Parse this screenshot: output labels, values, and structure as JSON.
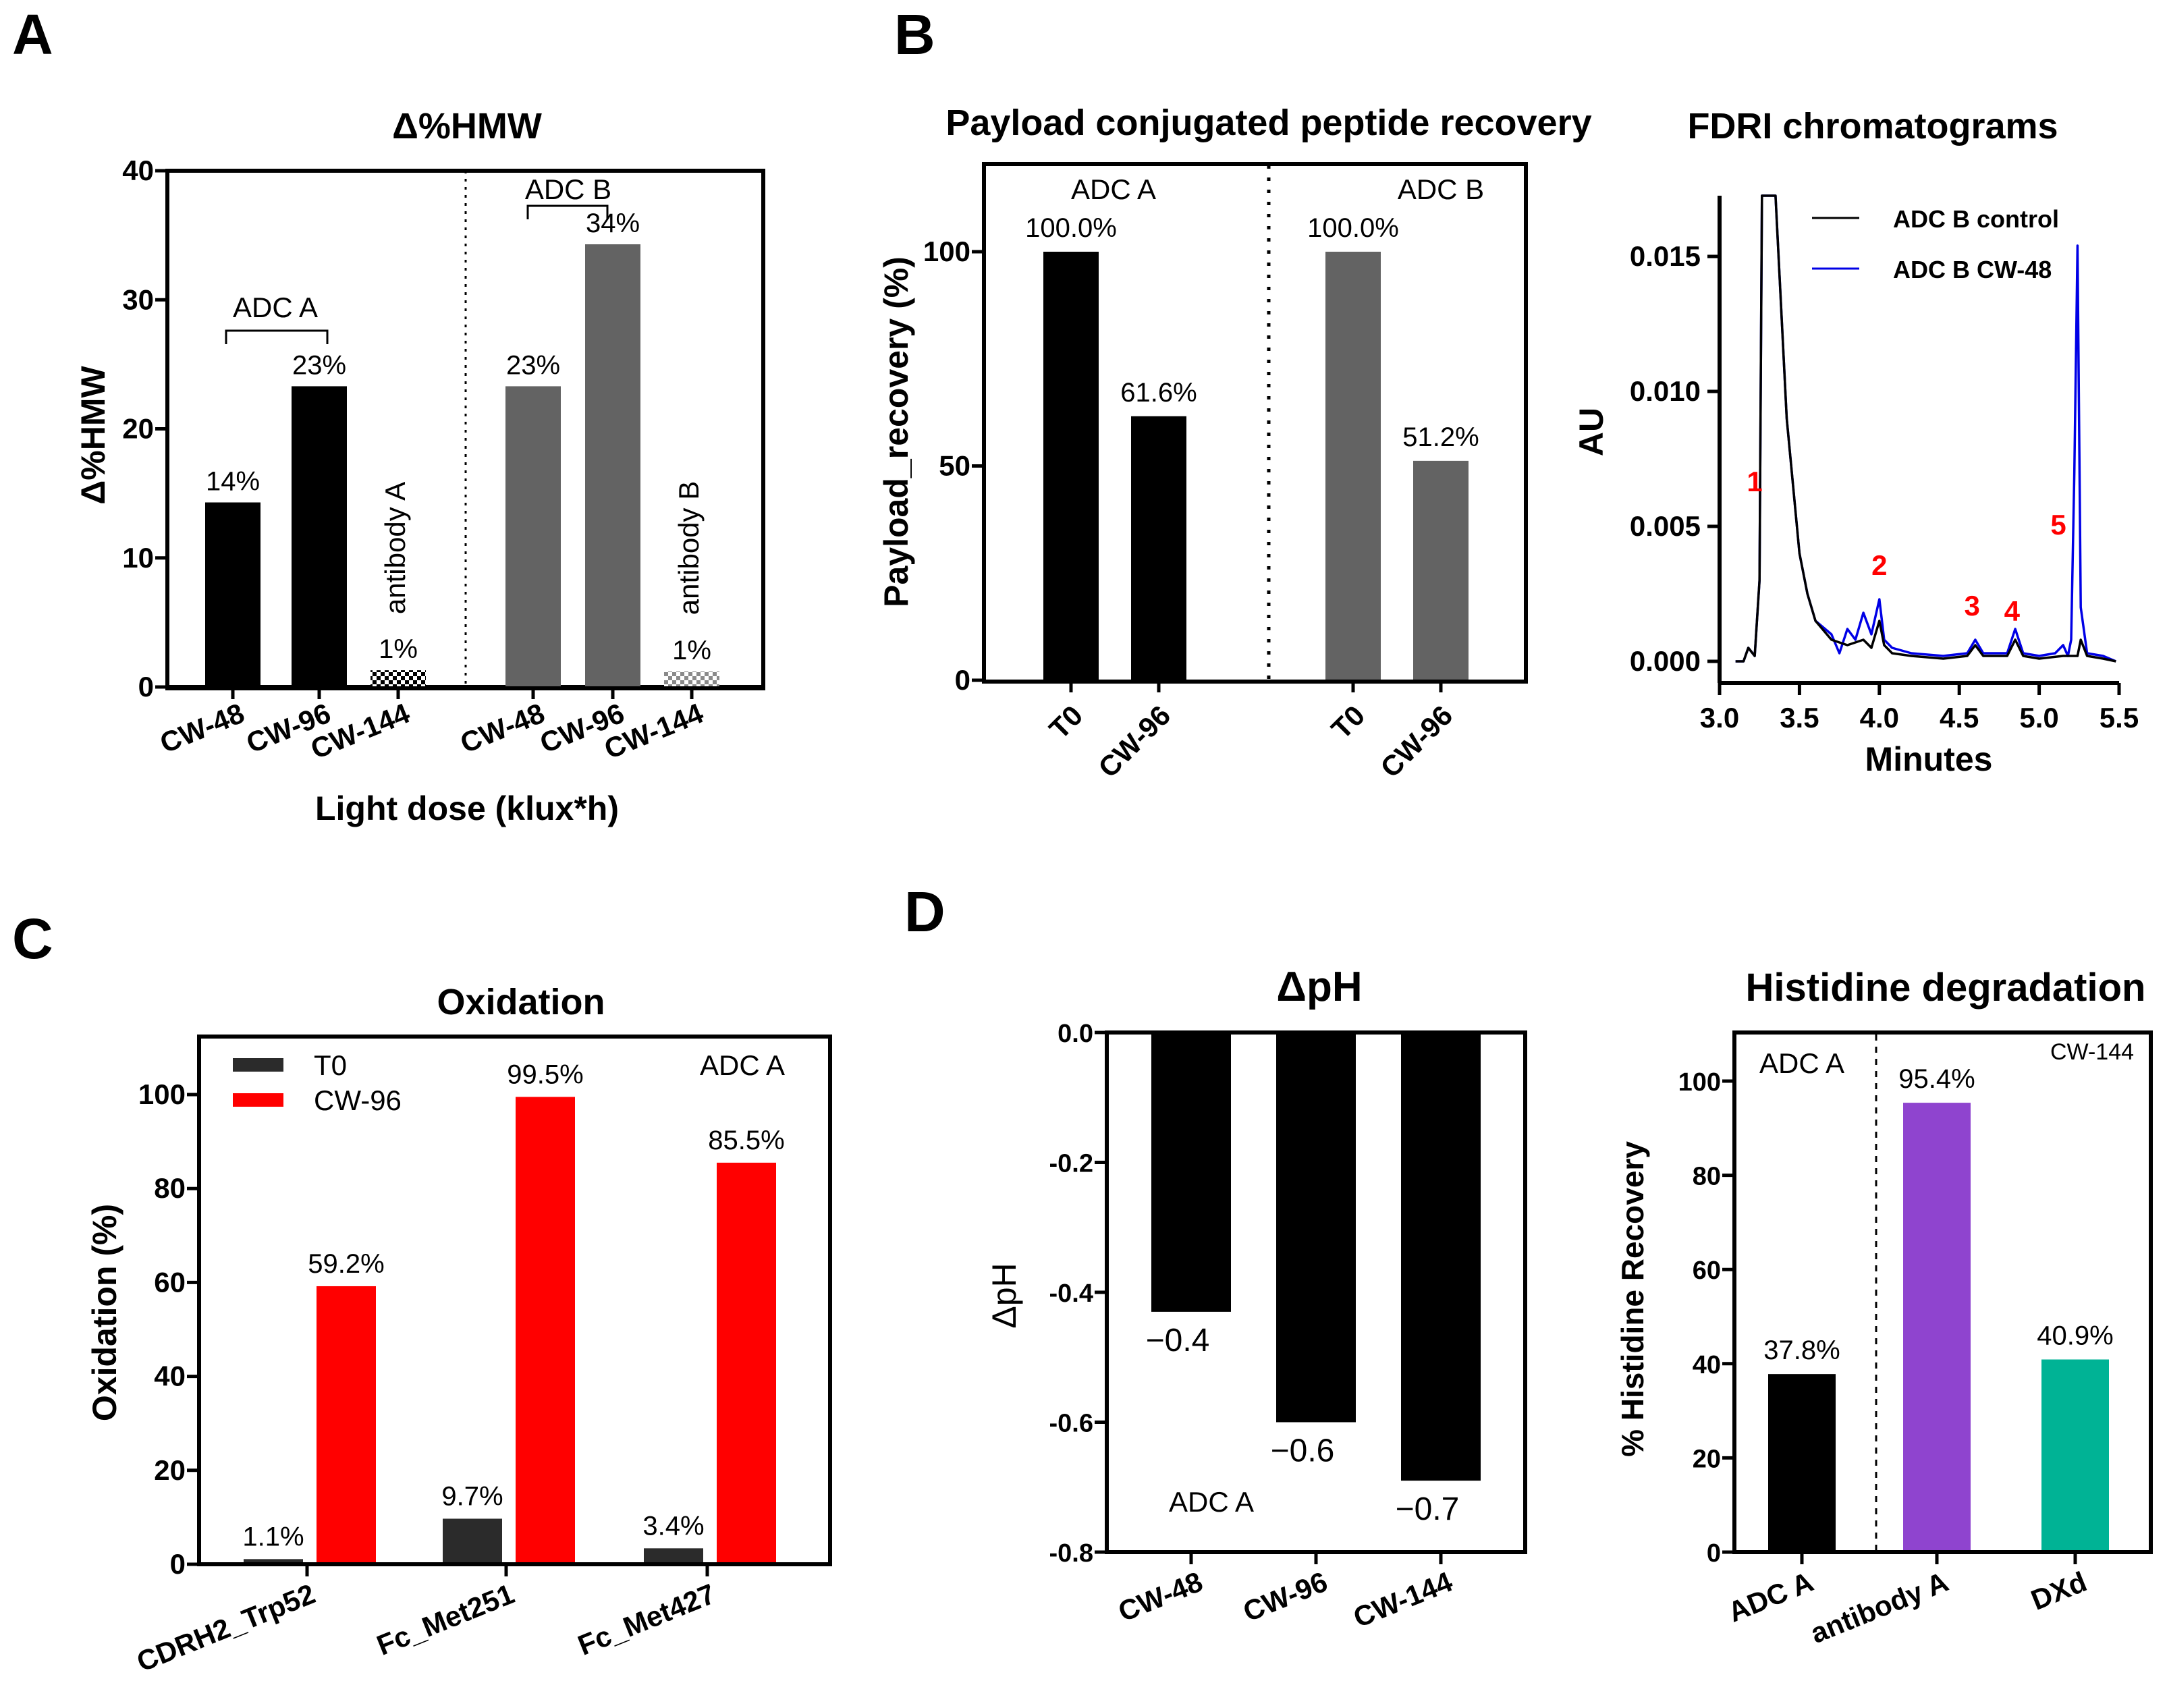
{
  "colors": {
    "black": "#000000",
    "gray": "#636363",
    "dark_gray": "#2b2b2b",
    "red": "#ff0000",
    "blue": "#0000e6",
    "purple": "#8f44cf",
    "teal": "#00b395"
  },
  "panel_labels": {
    "a": "A",
    "b": "B",
    "c": "C",
    "d": "D"
  },
  "chart_data": [
    {
      "id": "A",
      "type": "bar",
      "title": "Δ%HMW",
      "ylabel": "Δ%HMW",
      "xlabel": "Light dose (klux*h)",
      "ylim": [
        0,
        40
      ],
      "yticks": [
        "0",
        "10",
        "20",
        "30",
        "40"
      ],
      "categories": [
        "CW-48",
        "CW-96",
        "CW-144",
        "CW-48",
        "CW-96",
        "CW-144"
      ],
      "values": [
        14.3,
        23.3,
        1.3,
        23.3,
        34.3,
        1.2
      ],
      "value_labels": [
        "14%",
        "23%",
        "1%",
        "23%",
        "34%",
        "1%"
      ],
      "bar_colors": [
        "#000000",
        "#000000",
        "checker-black",
        "#636363",
        "#636363",
        "checker-gray"
      ],
      "groups": [
        {
          "label": "ADC A"
        },
        {
          "label": "ADC B"
        }
      ],
      "annotations": [
        "antibody A",
        "antibody B"
      ]
    },
    {
      "id": "B1",
      "type": "bar",
      "title": "Payload conjugated peptide recovery",
      "ylabel": "Payload_recovery (%)",
      "ylim": [
        0,
        125
      ],
      "yticks": [
        "0",
        "50",
        "100"
      ],
      "categories": [
        "T0",
        "CW-96",
        "T0",
        "CW-96"
      ],
      "values": [
        100.0,
        61.6,
        100.0,
        51.2
      ],
      "value_labels": [
        "100.0%",
        "61.6%",
        "100.0%",
        "51.2%"
      ],
      "bar_colors": [
        "#000000",
        "#000000",
        "#636363",
        "#636363"
      ],
      "groups": [
        {
          "label": "ADC A"
        },
        {
          "label": "ADC B"
        }
      ]
    },
    {
      "id": "B2",
      "type": "line",
      "title": "FDRI chromatograms",
      "xlabel": "Minutes",
      "ylabel": "AU",
      "xlim": [
        3.0,
        5.5
      ],
      "ylim": [
        -0.0005,
        0.017
      ],
      "xticks": [
        "3.0",
        "3.5",
        "4.0",
        "4.5",
        "5.0",
        "5.5"
      ],
      "yticks": [
        "0.000",
        "0.005",
        "0.010",
        "0.015"
      ],
      "series": [
        {
          "name": "ADC B control",
          "color": "#000000",
          "x": [
            3.1,
            3.15,
            3.18,
            3.22,
            3.25,
            3.265,
            3.28,
            3.3,
            3.35,
            3.42,
            3.5,
            3.55,
            3.6,
            3.7,
            3.8,
            3.9,
            3.95,
            4.0,
            4.03,
            4.08,
            4.2,
            4.4,
            4.55,
            4.6,
            4.65,
            4.8,
            4.85,
            4.9,
            5.0,
            5.15,
            5.2,
            5.24,
            5.26,
            5.3,
            5.4,
            5.48
          ],
          "y": [
            0.0,
            0.0,
            0.0005,
            0.0002,
            0.003,
            0.0175,
            0.0175,
            0.0175,
            0.0175,
            0.009,
            0.004,
            0.0025,
            0.0015,
            0.0008,
            0.0006,
            0.0008,
            0.0005,
            0.0015,
            0.0006,
            0.0003,
            0.0002,
            0.0001,
            0.0002,
            0.0006,
            0.0002,
            0.0002,
            0.0008,
            0.0002,
            0.0001,
            0.0002,
            0.0002,
            0.0002,
            0.0008,
            0.0002,
            0.0001,
            0.0
          ]
        },
        {
          "name": "ADC B CW-48",
          "color": "#0000e6",
          "x": [
            3.1,
            3.15,
            3.18,
            3.22,
            3.25,
            3.265,
            3.28,
            3.3,
            3.35,
            3.42,
            3.5,
            3.55,
            3.6,
            3.7,
            3.75,
            3.8,
            3.85,
            3.9,
            3.95,
            4.0,
            4.03,
            4.08,
            4.2,
            4.4,
            4.55,
            4.6,
            4.65,
            4.8,
            4.85,
            4.9,
            5.0,
            5.1,
            5.15,
            5.18,
            5.2,
            5.22,
            5.24,
            5.26,
            5.3,
            5.4,
            5.48
          ],
          "y": [
            0.0,
            0.0,
            0.0005,
            0.0002,
            0.003,
            0.0175,
            0.0175,
            0.0175,
            0.0175,
            0.009,
            0.004,
            0.0025,
            0.0015,
            0.001,
            0.0003,
            0.0012,
            0.0008,
            0.0018,
            0.001,
            0.0023,
            0.0008,
            0.0005,
            0.0003,
            0.0002,
            0.0003,
            0.0008,
            0.0003,
            0.0003,
            0.0012,
            0.0003,
            0.0002,
            0.0003,
            0.0006,
            0.0002,
            0.0008,
            0.007,
            0.0154,
            0.002,
            0.0003,
            0.0002,
            0.0
          ]
        }
      ],
      "peak_labels": [
        {
          "label": "1"
        },
        {
          "label": "2"
        },
        {
          "label": "3"
        },
        {
          "label": "4"
        },
        {
          "label": "5"
        }
      ]
    },
    {
      "id": "C",
      "type": "bar",
      "title": "Oxidation",
      "ylabel": "Oxidation  (%)",
      "ylim": [
        0,
        110
      ],
      "yticks": [
        "0",
        "20",
        "40",
        "60",
        "80",
        "100"
      ],
      "categories": [
        "CDRH2_Trp52",
        "Fc_Met251",
        "Fc_Met427"
      ],
      "series": [
        {
          "name": "T0",
          "color": "#2b2b2b",
          "values": [
            1.1,
            9.7,
            3.4
          ],
          "value_labels": [
            "1.1%",
            "9.7%",
            "3.4%"
          ]
        },
        {
          "name": "CW-96",
          "color": "#ff0000",
          "values": [
            59.2,
            99.5,
            85.5
          ],
          "value_labels": [
            "59.2%",
            "99.5%",
            "85.5%"
          ]
        }
      ],
      "annotation": "ADC A"
    },
    {
      "id": "D1",
      "type": "bar",
      "title": "ΔpH",
      "ylabel": "ΔpH",
      "ylim": [
        -0.8,
        0.0
      ],
      "yticks": [
        "0.0",
        "-0.2",
        "-0.4",
        "-0.6",
        "-0.8"
      ],
      "categories": [
        "CW-48",
        "CW-96",
        "CW-144"
      ],
      "values": [
        -0.43,
        -0.6,
        -0.69
      ],
      "value_labels": [
        "−0.4",
        "−0.6",
        "−0.7"
      ],
      "bar_colors": [
        "#000000",
        "#000000",
        "#000000"
      ],
      "annotation": "ADC A"
    },
    {
      "id": "D2",
      "type": "bar",
      "title": "Histidine degradation",
      "ylabel": "% Histidine Recovery",
      "ylim": [
        0,
        110
      ],
      "yticks": [
        "0",
        "20",
        "40",
        "60",
        "80",
        "100"
      ],
      "categories": [
        "ADC A",
        "antibody A",
        "DXd"
      ],
      "values": [
        37.8,
        95.4,
        40.9
      ],
      "value_labels": [
        "37.8%",
        "95.4%",
        "40.9%"
      ],
      "bar_colors": [
        "#000000",
        "#8f44cf",
        "#00b395"
      ],
      "annotations": [
        "ADC A",
        "CW-144"
      ]
    }
  ]
}
